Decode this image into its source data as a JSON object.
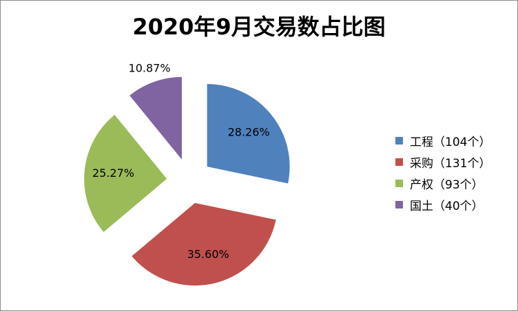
{
  "chart_data": {
    "type": "pie",
    "title": "2020年9月交易数占比图",
    "categories": [
      "工程",
      "采购",
      "产权",
      "国土"
    ],
    "values": [
      104,
      131,
      93,
      40
    ],
    "percent_labels": [
      "28.26%",
      "35.60%",
      "25.27%",
      "10.87%"
    ],
    "legend_labels": [
      "工程（104个）",
      "采购（131个）",
      "产权（93个）",
      "国土（40个）"
    ],
    "colors": [
      "#4f81bd",
      "#c0504d",
      "#9bbb59",
      "#8064a2"
    ],
    "exploded": true,
    "legend_position": "right"
  }
}
